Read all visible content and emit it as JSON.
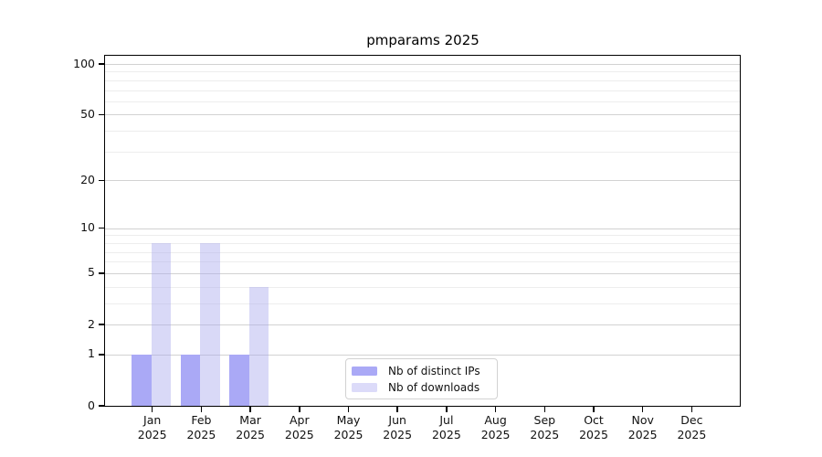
{
  "title": "pmparams 2025",
  "chart_data": {
    "type": "bar",
    "title": "pmparams 2025",
    "x_labels": [
      {
        "month": "Jan",
        "year": "2025"
      },
      {
        "month": "Feb",
        "year": "2025"
      },
      {
        "month": "Mar",
        "year": "2025"
      },
      {
        "month": "Apr",
        "year": "2025"
      },
      {
        "month": "May",
        "year": "2025"
      },
      {
        "month": "Jun",
        "year": "2025"
      },
      {
        "month": "Jul",
        "year": "2025"
      },
      {
        "month": "Aug",
        "year": "2025"
      },
      {
        "month": "Sep",
        "year": "2025"
      },
      {
        "month": "Oct",
        "year": "2025"
      },
      {
        "month": "Nov",
        "year": "2025"
      },
      {
        "month": "Dec",
        "year": "2025"
      }
    ],
    "series": [
      {
        "name": "Nb of distinct IPs",
        "color": "#aaa9f6",
        "opacity": 1,
        "values": [
          1,
          1,
          1,
          0,
          0,
          0,
          0,
          0,
          0,
          0,
          0,
          0
        ]
      },
      {
        "name": "Nb of downloads",
        "color": "#aaaaee",
        "opacity": 0.45,
        "values": [
          8,
          8,
          4,
          0,
          0,
          0,
          0,
          0,
          0,
          0,
          0,
          0
        ]
      }
    ],
    "yscale": "symlog",
    "y_major_ticks": [
      0,
      1,
      2,
      5,
      10,
      20,
      50,
      100
    ],
    "y_minor_ticks": [
      3,
      4,
      6,
      7,
      8,
      9,
      30,
      40,
      60,
      70,
      80,
      90
    ],
    "ylim": [
      0,
      112
    ],
    "grid": "horizontal",
    "legend_position": "inside-bottom-center"
  },
  "legend": {
    "items": [
      {
        "label": "Nb of distinct IPs",
        "color": "#aaa9f6"
      },
      {
        "label": "Nb of downloads",
        "color": "#dcdbf9"
      }
    ]
  },
  "colors": {
    "bar_distinct_ips": "#aaa9f6",
    "bar_downloads_fill": "#dcdbf9",
    "grid_major": "#d2d2d2",
    "grid_minor": "#ededed",
    "axis": "#000000",
    "background": "#ffffff",
    "text": "#111111"
  }
}
